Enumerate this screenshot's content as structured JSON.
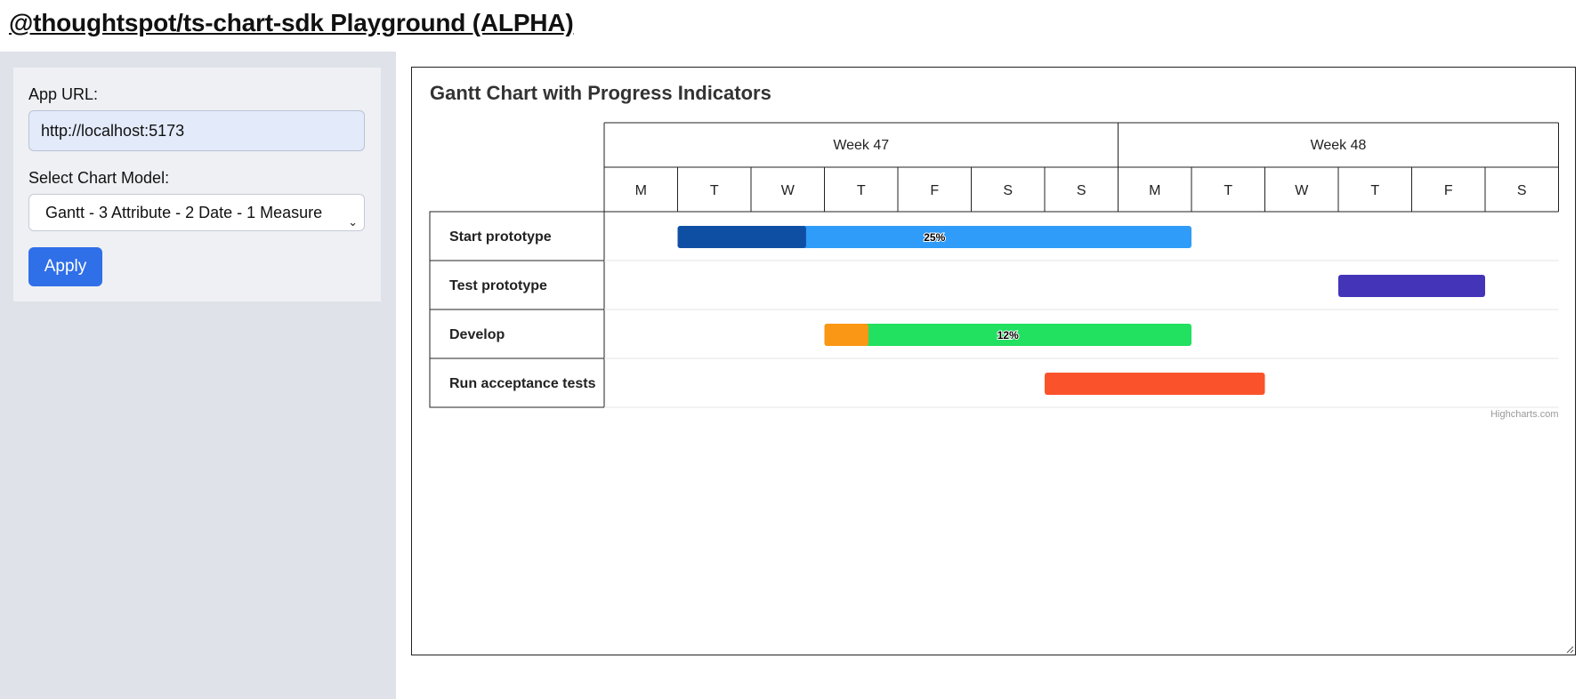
{
  "page": {
    "title": "@thoughtspot/ts-chart-sdk Playground (ALPHA)"
  },
  "sidebar": {
    "app_url_label": "App URL:",
    "app_url_value": "http://localhost:5173",
    "chart_model_label": "Select Chart Model:",
    "chart_model_selected": "Gantt - 3 Attribute - 2 Date - 1 Measure",
    "apply_label": "Apply",
    "icons": {
      "select_chevron": "chevron-down-icon"
    }
  },
  "chart_data": {
    "type": "gantt",
    "title": "Gantt Chart with Progress Indicators",
    "credit": "Highcharts.com",
    "weeks": [
      {
        "label": "Week 47",
        "day_span": 7
      },
      {
        "label": "Week 48",
        "day_span": 6
      }
    ],
    "days": [
      "M",
      "T",
      "W",
      "T",
      "F",
      "S",
      "S",
      "M",
      "T",
      "W",
      "T",
      "F",
      "S"
    ],
    "tasks": [
      {
        "name": "Start prototype",
        "start_day": 1,
        "end_day": 8,
        "completed": 0.25,
        "label": "25%",
        "color": "#2e9cf8",
        "progress_color": "#0f4fa3"
      },
      {
        "name": "Test prototype",
        "start_day": 10,
        "end_day": 12,
        "completed": null,
        "label": "",
        "color": "#4334b8",
        "progress_color": ""
      },
      {
        "name": "Develop",
        "start_day": 3,
        "end_day": 8,
        "completed": 0.12,
        "label": "12%",
        "color": "#22e060",
        "progress_color": "#fa9714"
      },
      {
        "name": "Run acceptance tests",
        "start_day": 6,
        "end_day": 9,
        "completed": null,
        "label": "",
        "color": "#fa532b",
        "progress_color": ""
      }
    ]
  }
}
